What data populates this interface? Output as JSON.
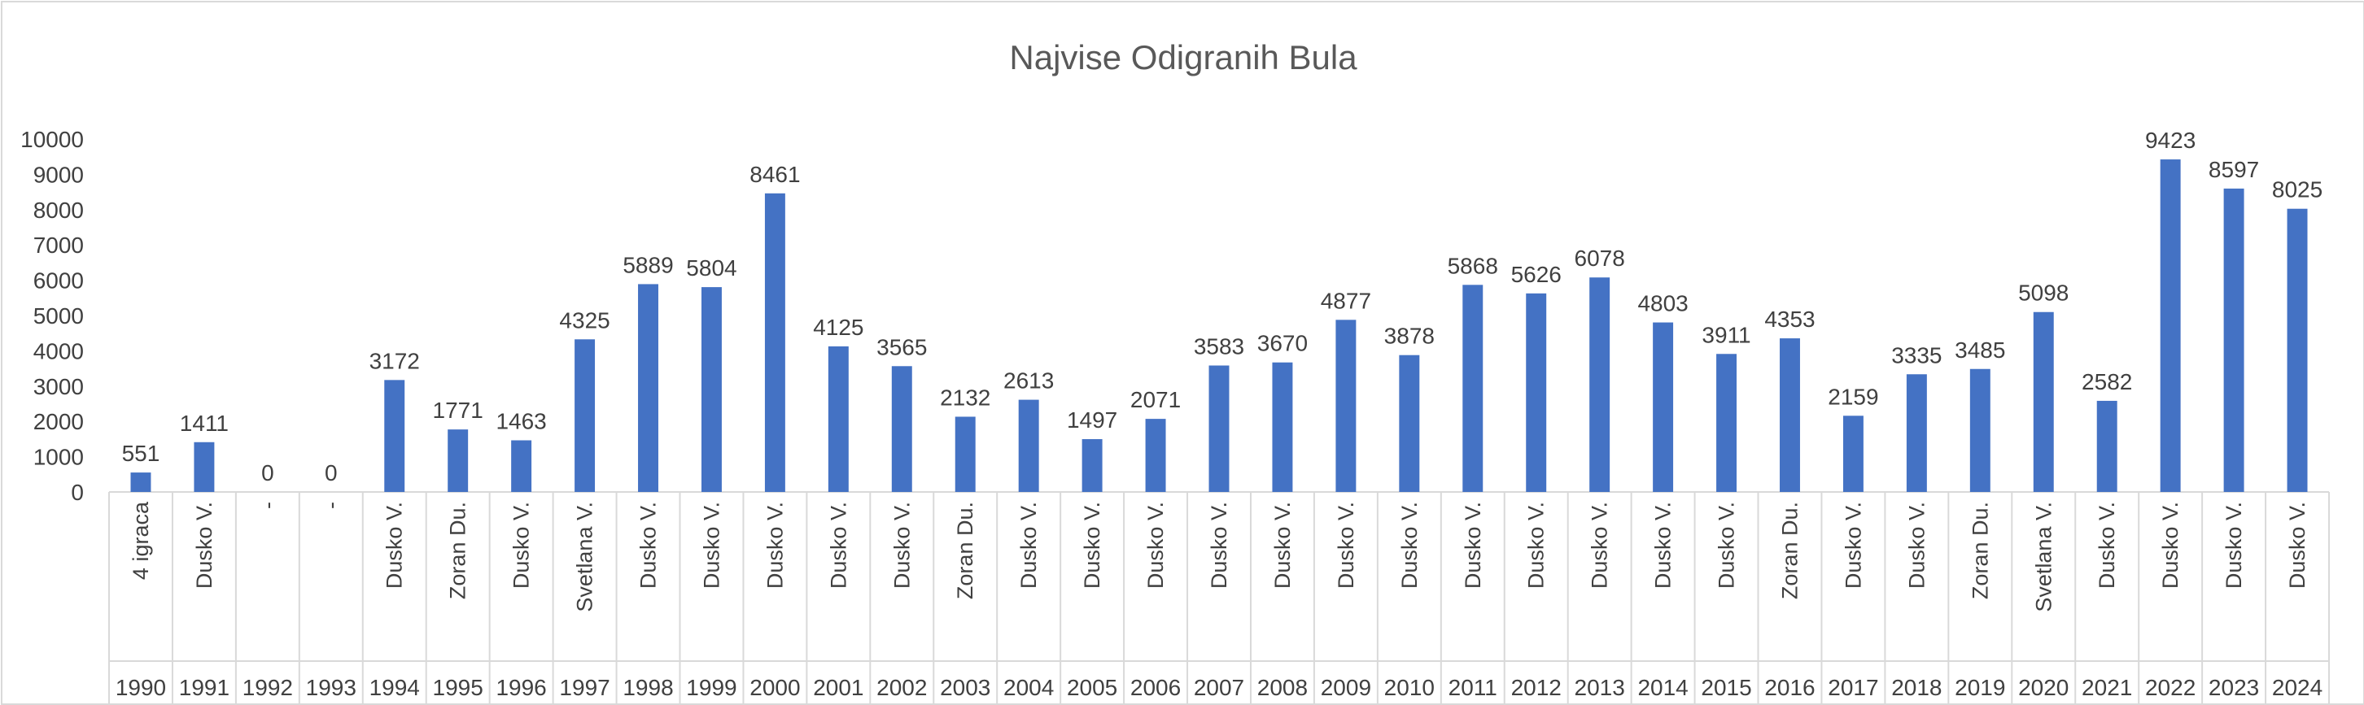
{
  "chart_data": {
    "type": "bar",
    "title": "Najvise Odigranih Bula",
    "xlabel": "",
    "ylabel": "",
    "ylim": [
      0,
      10000
    ],
    "yticks": [
      0,
      1000,
      2000,
      3000,
      4000,
      5000,
      6000,
      7000,
      8000,
      9000,
      10000
    ],
    "grid": false,
    "legend": "none",
    "bar_color": "#4472c4",
    "categories": [
      "1990",
      "1991",
      "1992",
      "1993",
      "1994",
      "1995",
      "1996",
      "1997",
      "1998",
      "1999",
      "2000",
      "2001",
      "2002",
      "2003",
      "2004",
      "2005",
      "2006",
      "2007",
      "2008",
      "2009",
      "2010",
      "2011",
      "2012",
      "2013",
      "2014",
      "2015",
      "2016",
      "2017",
      "2018",
      "2019",
      "2020",
      "2021",
      "2022",
      "2023",
      "2024"
    ],
    "players": [
      "4 igraca",
      "Dusko V.",
      "-",
      "-",
      "Dusko V.",
      "Zoran Du.",
      "Dusko V.",
      "Svetlana V.",
      "Dusko V.",
      "Dusko V.",
      "Dusko V.",
      "Dusko V.",
      "Dusko V.",
      "Zoran Du.",
      "Dusko V.",
      "Dusko V.",
      "Dusko V.",
      "Dusko V.",
      "Dusko V.",
      "Dusko V.",
      "Dusko V.",
      "Dusko V.",
      "Dusko V.",
      "Dusko V.",
      "Dusko V.",
      "Dusko V.",
      "Zoran Du.",
      "Dusko V.",
      "Dusko V.",
      "Zoran Du.",
      "Svetlana V.",
      "Dusko V.",
      "Dusko V.",
      "Dusko V.",
      "Dusko V."
    ],
    "values": [
      551,
      1411,
      0,
      0,
      3172,
      1771,
      1463,
      4325,
      5889,
      5804,
      8461,
      4125,
      3565,
      2132,
      2613,
      1497,
      2071,
      3583,
      3670,
      4877,
      3878,
      5868,
      5626,
      6078,
      4803,
      3911,
      4353,
      2159,
      3335,
      3485,
      5098,
      2582,
      9423,
      8597,
      8025
    ]
  }
}
